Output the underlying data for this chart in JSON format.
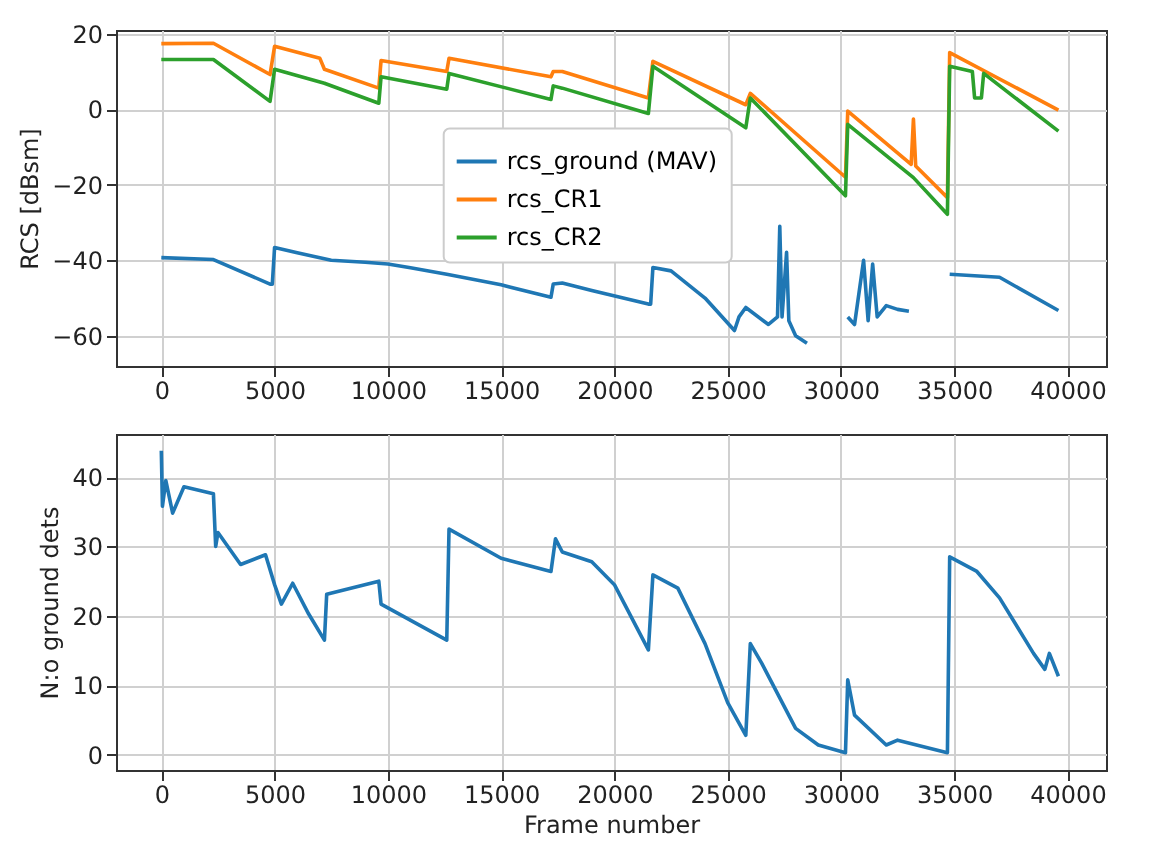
{
  "chart_data": [
    {
      "type": "line",
      "ylabel": "RCS [dBsm]",
      "xlim": [
        -2000,
        41700
      ],
      "xticks": [
        0,
        5000,
        10000,
        15000,
        20000,
        25000,
        30000,
        35000,
        40000
      ],
      "ylim": [
        -68,
        21
      ],
      "yticks": [
        -60,
        -40,
        -20,
        0,
        20
      ],
      "grid": true,
      "legend": "center",
      "series": [
        {
          "name": "rcs_ground (MAV)",
          "color": "#1f77b4",
          "x": [
            0,
            2300,
            4800,
            4900,
            5000,
            6000,
            7500,
            9000,
            10000,
            11000,
            12600,
            15000,
            17200,
            17300,
            17700,
            19000,
            21500,
            21600,
            21700,
            22500,
            24000,
            25300,
            25500,
            25800,
            26800,
            27200,
            27300,
            27400,
            27600,
            27700,
            28000,
            28500,
            28600,
            30300,
            30600,
            31000,
            31200,
            31400,
            31600,
            32000,
            32500,
            33000,
            33100,
            34800,
            37000,
            39600
          ],
          "values": [
            -39.3,
            -39.8,
            -46.3,
            -46.3,
            -36.6,
            -38,
            -40,
            -40.5,
            -41,
            -42,
            -43.7,
            -46.5,
            -49.8,
            -46.3,
            -46,
            -48,
            -51.6,
            -51.6,
            -41.9,
            -42.8,
            -50,
            -58.6,
            -55,
            -52.5,
            -57,
            -55,
            -31,
            -55,
            -37.9,
            -56,
            -60,
            -62,
            null,
            -55,
            -57,
            -40,
            -56,
            -41,
            -55,
            -52,
            -53,
            -53.5,
            null,
            -43.7,
            -44.5,
            -53.3
          ]
        },
        {
          "name": "rcs_CR1",
          "color": "#ff7f0e",
          "x": [
            0,
            2300,
            4800,
            5000,
            7000,
            7200,
            9600,
            9700,
            12600,
            12700,
            17200,
            17300,
            17700,
            21500,
            21700,
            25800,
            26000,
            30200,
            30300,
            33100,
            33200,
            33300,
            34700,
            34800,
            39600
          ],
          "values": [
            17.4,
            17.5,
            9.2,
            16.7,
            13.5,
            10.6,
            5.6,
            12.9,
            10,
            13.5,
            8.6,
            10,
            10,
            3,
            12.7,
            1.2,
            4.2,
            -18,
            -0.5,
            -14.6,
            -2.6,
            -15,
            -23.4,
            15,
            -0.2
          ]
        },
        {
          "name": "rcs_CR2",
          "color": "#2ca02c",
          "x": [
            0,
            2300,
            4800,
            5000,
            7200,
            9600,
            9700,
            12600,
            12700,
            17200,
            17300,
            17700,
            21500,
            21700,
            25800,
            26000,
            30200,
            30300,
            33200,
            34700,
            34800,
            35800,
            35900,
            36200,
            36300,
            39600
          ],
          "values": [
            13.2,
            13.2,
            2.1,
            10.6,
            6.9,
            1.6,
            8.6,
            5.3,
            9.5,
            2.6,
            6.2,
            5.6,
            -1.1,
            11.4,
            -4.9,
            3,
            -22.9,
            -4,
            -18.1,
            -27.8,
            11.4,
            10,
            3,
            3,
            9.5,
            -5.8
          ]
        }
      ]
    },
    {
      "type": "line",
      "xlabel": "Frame number",
      "ylabel": "N:o ground dets",
      "xlim": [
        -2000,
        41700
      ],
      "xticks": [
        0,
        5000,
        10000,
        15000,
        20000,
        25000,
        30000,
        35000,
        40000
      ],
      "ylim": [
        -2.2,
        46.2
      ],
      "yticks": [
        0,
        10,
        20,
        30,
        40
      ],
      "grid": true,
      "series": [
        {
          "color": "#1f77b4",
          "x": [
            0,
            50,
            200,
            500,
            1000,
            2300,
            2400,
            2500,
            3500,
            4600,
            5000,
            5300,
            5800,
            6500,
            7200,
            7300,
            9600,
            9700,
            12600,
            12700,
            15000,
            17200,
            17400,
            17700,
            19000,
            20000,
            21500,
            21700,
            22800,
            24000,
            25000,
            25800,
            26000,
            26500,
            28000,
            29000,
            30200,
            30300,
            30600,
            32000,
            32500,
            34700,
            34800,
            36000,
            37000,
            38500,
            39000,
            39200,
            39600
          ],
          "values": [
            43.8,
            35.8,
            39.5,
            34.8,
            38.6,
            37.6,
            30,
            32,
            27.4,
            28.8,
            24.5,
            21.7,
            24.7,
            20.3,
            16.5,
            23.1,
            25,
            21.7,
            16.5,
            32.5,
            28.3,
            26.4,
            31.1,
            29.2,
            27.8,
            24.5,
            15.1,
            25.9,
            24,
            16,
            7.5,
            2.8,
            16,
            13.2,
            3.8,
            1.4,
            0.3,
            10.8,
            5.7,
            1.4,
            2.1,
            0.3,
            28.5,
            26.4,
            22.6,
            14.6,
            12.3,
            14.6,
            11.3
          ]
        }
      ]
    }
  ]
}
